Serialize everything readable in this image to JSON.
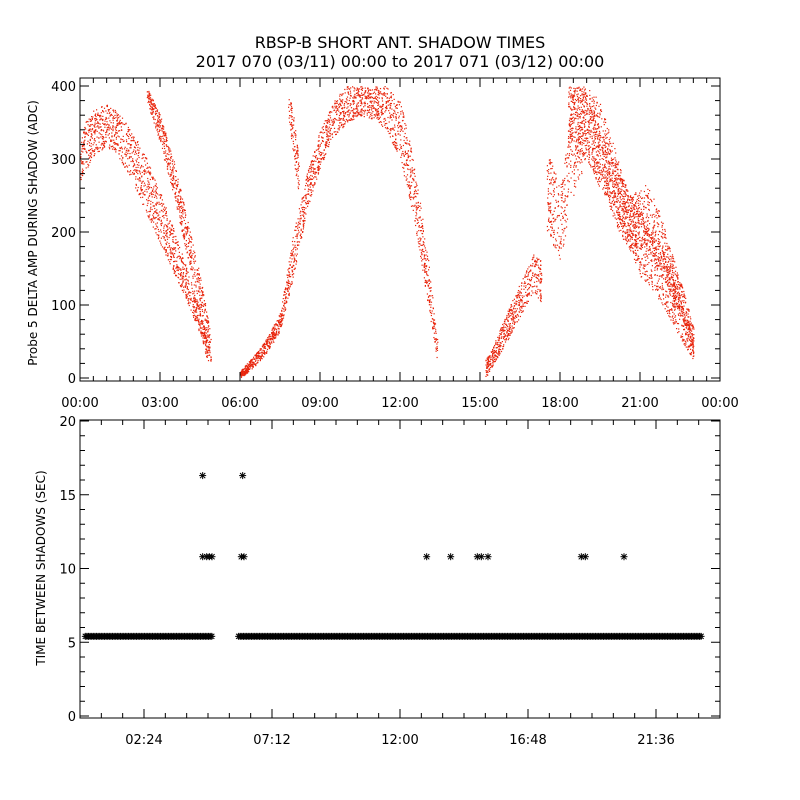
{
  "header": {
    "title_line1": "RBSP-B SHORT ANT. SHADOW TIMES",
    "title_line2": "2017 070 (03/11) 00:00 to 2017 071 (03/12) 00:00"
  },
  "colors": {
    "top_points": "#e8250c",
    "bottom_markers": "#000000",
    "axes": "#000000"
  },
  "chart_data": [
    {
      "type": "scatter",
      "panel": "top",
      "xlabel": "",
      "ylabel": "Probe 5 DELTA AMP DURING SHADOW (ADC)",
      "x_unit": "hours",
      "xlim": [
        0,
        24
      ],
      "ylim": [
        0,
        400
      ],
      "x_tick_labels": [
        "00:00",
        "03:00",
        "06:00",
        "09:00",
        "12:00",
        "15:00",
        "18:00",
        "21:00",
        "00:00"
      ],
      "y_tick_labels": [
        "0",
        "100",
        "200",
        "300",
        "400"
      ],
      "grid": false,
      "series": [
        {
          "color": "#e8250c",
          "bands": [
            {
              "x": [
                0.0,
                0.5,
                1.0,
                1.5,
                2.0,
                2.5,
                3.0,
                3.5,
                4.0,
                4.5,
                4.8
              ],
              "y_high": [
                340,
                368,
                376,
                362,
                335,
                300,
                255,
                205,
                150,
                95,
                45
              ],
              "y_low": [
                270,
                305,
                318,
                300,
                265,
                225,
                185,
                145,
                105,
                60,
                20
              ]
            },
            {
              "x": [
                2.5,
                3.0,
                3.5,
                4.0,
                4.5,
                4.9
              ],
              "y_high": [
                400,
                360,
                300,
                220,
                140,
                60
              ],
              "y_low": [
                380,
                320,
                250,
                170,
                90,
                20
              ]
            },
            {
              "x": [
                6.0,
                6.5,
                7.0,
                7.5,
                8.0,
                8.5,
                9.0,
                9.5,
                10.0,
                10.5,
                11.0,
                11.5,
                12.0,
                12.5,
                13.0,
                13.4
              ],
              "y_high": [
                10,
                30,
                55,
                90,
                200,
                280,
                340,
                380,
                400,
                400,
                400,
                400,
                380,
                300,
                180,
                50
              ],
              "y_low": [
                0,
                15,
                35,
                65,
                140,
                230,
                290,
                330,
                350,
                360,
                355,
                335,
                300,
                220,
                110,
                20
              ]
            },
            {
              "x": [
                7.8,
                8.0,
                8.2
              ],
              "y_high": [
                400,
                360,
                300
              ],
              "y_low": [
                360,
                300,
                250
              ]
            },
            {
              "x": [
                15.2,
                15.5,
                16.0,
                16.5,
                17.0,
                17.3
              ],
              "y_high": [
                25,
                45,
                90,
                130,
                170,
                160
              ],
              "y_low": [
                0,
                20,
                50,
                85,
                120,
                100
              ]
            },
            {
              "x": [
                17.5,
                18.0,
                18.5,
                19.0,
                19.5,
                20.0,
                20.5,
                21.0,
                21.5,
                22.0,
                22.5,
                23.0
              ],
              "y_high": [
                320,
                260,
                400,
                400,
                380,
                320,
                260,
                230,
                200,
                160,
                110,
                60
              ],
              "y_low": [
                200,
                160,
                250,
                300,
                260,
                230,
                190,
                140,
                120,
                90,
                55,
                25
              ]
            },
            {
              "x": [
                18.3,
                18.7,
                19.2,
                19.7,
                20.2,
                20.7,
                21.2,
                21.7,
                22.2,
                22.7,
                23.0
              ],
              "y_high": [
                400,
                400,
                380,
                330,
                280,
                250,
                270,
                230,
                170,
                110,
                70
              ],
              "y_low": [
                330,
                310,
                290,
                250,
                200,
                170,
                180,
                150,
                110,
                70,
                30
              ]
            }
          ]
        }
      ]
    },
    {
      "type": "scatter",
      "panel": "bottom",
      "xlabel": "",
      "ylabel": "TIME BETWEEN SHADOWS (SEC)",
      "x_unit": "hours",
      "xlim": [
        0,
        24
      ],
      "ylim": [
        0,
        20
      ],
      "x_ticks": [
        2.4,
        7.2,
        12.0,
        16.8,
        21.6
      ],
      "x_tick_labels": [
        "02:24",
        "07:12",
        "12:00",
        "16:48",
        "21:36"
      ],
      "y_ticks": [
        0,
        5,
        10,
        15,
        20
      ],
      "y_tick_labels": [
        "0",
        "5",
        "10",
        "15",
        "20"
      ],
      "grid": false,
      "series": [
        {
          "color": "#000000",
          "marker": "*",
          "baseline_value": 5.4,
          "baseline_segments": [
            [
              0.2,
              4.95
            ],
            [
              5.95,
              23.3
            ]
          ],
          "outliers": [
            {
              "x": 4.6,
              "y": 16.3
            },
            {
              "x": 6.1,
              "y": 16.3
            },
            {
              "x": 4.6,
              "y": 10.8
            },
            {
              "x": 4.75,
              "y": 10.8
            },
            {
              "x": 4.85,
              "y": 10.8
            },
            {
              "x": 4.95,
              "y": 10.8
            },
            {
              "x": 6.05,
              "y": 10.8
            },
            {
              "x": 6.15,
              "y": 10.8
            },
            {
              "x": 13.0,
              "y": 10.8
            },
            {
              "x": 13.9,
              "y": 10.8
            },
            {
              "x": 14.9,
              "y": 10.8
            },
            {
              "x": 15.05,
              "y": 10.8
            },
            {
              "x": 15.3,
              "y": 10.8
            },
            {
              "x": 18.8,
              "y": 10.8
            },
            {
              "x": 18.95,
              "y": 10.8
            },
            {
              "x": 20.4,
              "y": 10.8
            }
          ]
        }
      ]
    }
  ]
}
